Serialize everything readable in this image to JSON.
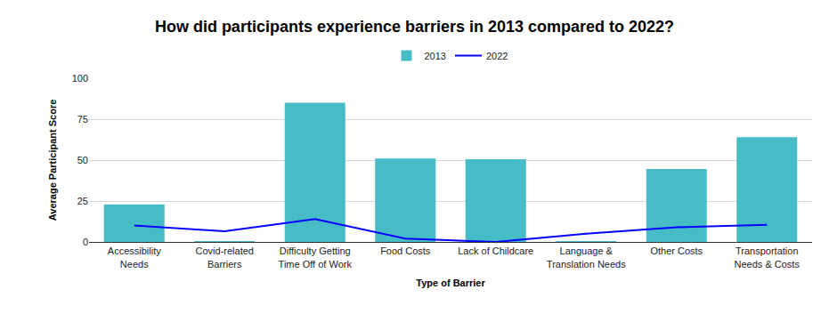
{
  "chart_data": {
    "type": "bar",
    "title": "How did participants experience barriers in 2013 compared to 2022?",
    "x_label": "Type of Barrier",
    "y_label": "Average Participant Score",
    "categories": [
      "Accessibility Needs",
      "Covid-related Barriers",
      "Difficulty Getting Time Off of Work",
      "Food Costs",
      "Lack of Childcare",
      "Language & Translation Needs",
      "Other Costs",
      "Transportation Needs & Costs"
    ],
    "series": [
      {
        "name": "2013",
        "type": "bar",
        "color": "#46bdc6",
        "values": [
          23,
          0.5,
          85,
          51,
          50.5,
          0.5,
          44.5,
          64
        ]
      },
      {
        "name": "2022",
        "type": "line",
        "color": "#0000ff",
        "values": [
          10,
          6.5,
          14,
          2,
          0,
          5,
          9,
          10.5
        ]
      }
    ],
    "ylim": [
      0,
      100
    ],
    "yticks": [
      0,
      25,
      50,
      75,
      100
    ],
    "grid": true,
    "legend": "top"
  }
}
